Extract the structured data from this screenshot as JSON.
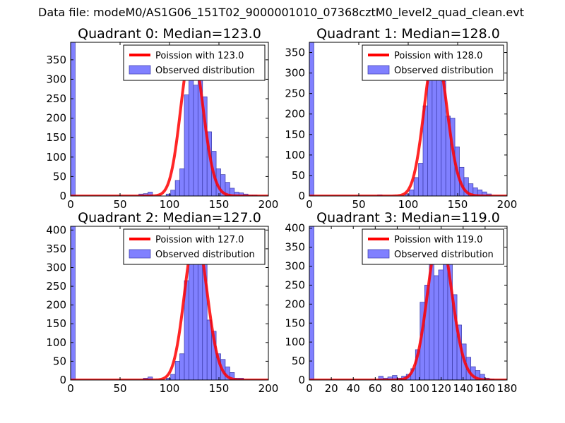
{
  "figure": {
    "suptitle": "Data file: modeM0/AS1G06_151T02_9000001010_07368cztM0_level2_quad_clean.evt",
    "curve_color": "#ff0000",
    "bar_color": "#8080ff",
    "bar_edge_color": "#3a3aa8"
  },
  "chart_data": [
    {
      "type": "bar",
      "title": "Quadrant 0: Median=123.0",
      "legend": [
        "Poission with 123.0",
        "Observed distribution"
      ],
      "legend_position": "top-right",
      "median": 123.0,
      "xlim": [
        0,
        200
      ],
      "ylim": [
        0,
        395
      ],
      "xticks": [
        0,
        50,
        100,
        150,
        200
      ],
      "yticks": [
        0,
        50,
        100,
        150,
        200,
        250,
        300,
        350
      ],
      "bin_width": 4.6,
      "bins": [
        [
          0,
          395
        ],
        [
          69,
          5
        ],
        [
          73.6,
          6
        ],
        [
          78.2,
          10
        ],
        [
          96.6,
          5
        ],
        [
          101.2,
          15
        ],
        [
          105.8,
          40
        ],
        [
          110.4,
          70
        ],
        [
          115,
          260
        ],
        [
          119.6,
          325
        ],
        [
          124.2,
          285
        ],
        [
          128.8,
          300
        ],
        [
          133.4,
          255
        ],
        [
          138,
          165
        ],
        [
          142.6,
          115
        ],
        [
          147.2,
          70
        ],
        [
          151.8,
          55
        ],
        [
          156.4,
          35
        ],
        [
          161,
          20
        ],
        [
          165.6,
          10
        ],
        [
          170.2,
          8
        ],
        [
          174.8,
          5
        ],
        [
          179.4,
          3
        ],
        [
          184,
          3
        ]
      ],
      "poisson_peak": 380
    },
    {
      "type": "bar",
      "title": "Quadrant 1: Median=128.0",
      "legend": [
        "Poission with 128.0",
        "Observed distribution"
      ],
      "legend_position": "top-right",
      "median": 128.0,
      "xlim": [
        0,
        200
      ],
      "ylim": [
        0,
        375
      ],
      "xticks": [
        0,
        50,
        100,
        150,
        200
      ],
      "yticks": [
        0,
        50,
        100,
        150,
        200,
        250,
        300,
        350
      ],
      "bin_width": 4.6,
      "bins": [
        [
          0,
          375
        ],
        [
          69,
          3
        ],
        [
          96.6,
          5
        ],
        [
          101.2,
          15
        ],
        [
          105.8,
          45
        ],
        [
          110.4,
          80
        ],
        [
          115,
          220
        ],
        [
          119.6,
          290
        ],
        [
          124.2,
          310
        ],
        [
          128.8,
          330
        ],
        [
          133.4,
          280
        ],
        [
          138,
          195
        ],
        [
          142.6,
          190
        ],
        [
          147.2,
          120
        ],
        [
          151.8,
          70
        ],
        [
          156.4,
          45
        ],
        [
          161,
          30
        ],
        [
          165.6,
          20
        ],
        [
          170.2,
          15
        ],
        [
          174.8,
          10
        ],
        [
          179.4,
          5
        ]
      ],
      "poisson_peak": 360
    },
    {
      "type": "bar",
      "title": "Quadrant 2: Median=127.0",
      "legend": [
        "Poission with 127.0",
        "Observed distribution"
      ],
      "legend_position": "top-right",
      "median": 127.0,
      "xlim": [
        0,
        200
      ],
      "ylim": [
        0,
        410
      ],
      "xticks": [
        0,
        50,
        100,
        150,
        200
      ],
      "yticks": [
        0,
        50,
        100,
        150,
        200,
        250,
        300,
        350,
        400
      ],
      "bin_width": 4.6,
      "bins": [
        [
          0,
          410
        ],
        [
          73.6,
          5
        ],
        [
          78.2,
          8
        ],
        [
          96.6,
          5
        ],
        [
          101.2,
          15
        ],
        [
          105.8,
          50
        ],
        [
          110.4,
          70
        ],
        [
          115,
          265
        ],
        [
          119.6,
          385
        ],
        [
          124.2,
          370
        ],
        [
          128.8,
          385
        ],
        [
          133.4,
          325
        ],
        [
          138,
          160
        ],
        [
          142.6,
          130
        ],
        [
          147.2,
          70
        ],
        [
          151.8,
          55
        ],
        [
          156.4,
          35
        ],
        [
          161,
          20
        ],
        [
          165.6,
          5
        ],
        [
          170.2,
          5
        ]
      ],
      "poisson_peak": 390
    },
    {
      "type": "bar",
      "title": "Quadrant 3: Median=119.0",
      "legend": [
        "Poission with 119.0",
        "Observed distribution"
      ],
      "legend_position": "top-right",
      "median": 119.0,
      "xlim": [
        0,
        180
      ],
      "ylim": [
        0,
        405
      ],
      "xticks": [
        0,
        20,
        40,
        60,
        80,
        100,
        120,
        140,
        160,
        180
      ],
      "yticks": [
        0,
        50,
        100,
        150,
        200,
        250,
        300,
        350,
        400
      ],
      "bin_width": 4.2,
      "bins": [
        [
          0,
          405
        ],
        [
          63,
          10
        ],
        [
          67.2,
          5
        ],
        [
          71.4,
          8
        ],
        [
          75.6,
          12
        ],
        [
          79.8,
          5
        ],
        [
          84,
          10
        ],
        [
          88.2,
          15
        ],
        [
          92.4,
          30
        ],
        [
          96.6,
          80
        ],
        [
          100.8,
          205
        ],
        [
          105,
          250
        ],
        [
          109.2,
          355
        ],
        [
          113.4,
          275
        ],
        [
          117.6,
          290
        ],
        [
          121.8,
          330
        ],
        [
          126,
          320
        ],
        [
          130.2,
          225
        ],
        [
          134.4,
          145
        ],
        [
          138.6,
          95
        ],
        [
          142.8,
          60
        ],
        [
          147,
          35
        ],
        [
          151.2,
          25
        ],
        [
          155.4,
          15
        ],
        [
          159.6,
          5
        ],
        [
          163.8,
          3
        ]
      ],
      "poisson_peak": 385
    }
  ]
}
